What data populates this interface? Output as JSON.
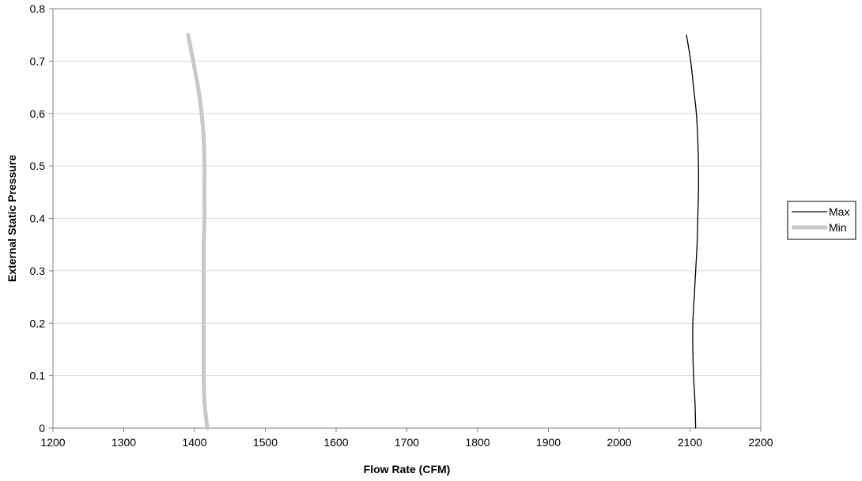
{
  "chart_data": {
    "type": "line",
    "title": "",
    "xlabel": "Flow Rate (CFM)",
    "ylabel": "External Static Pressure",
    "xlim": [
      1200,
      2200
    ],
    "ylim": [
      0,
      0.8
    ],
    "x_ticks": [
      "1200",
      "1300",
      "1400",
      "1500",
      "1600",
      "1700",
      "1800",
      "1900",
      "2000",
      "2100",
      "2200"
    ],
    "y_ticks": [
      "0",
      "0.1",
      "0.2",
      "0.3",
      "0.4",
      "0.5",
      "0.6",
      "0.7",
      "0.8"
    ],
    "grid": "horizontal",
    "legend_position": "right",
    "series": [
      {
        "name": "Max",
        "color": "#000000",
        "points": [
          {
            "x": 2108,
            "y": 0.0
          },
          {
            "x": 2107,
            "y": 0.05
          },
          {
            "x": 2105,
            "y": 0.1
          },
          {
            "x": 2104,
            "y": 0.15
          },
          {
            "x": 2104,
            "y": 0.2
          },
          {
            "x": 2106,
            "y": 0.25
          },
          {
            "x": 2108,
            "y": 0.3
          },
          {
            "x": 2110,
            "y": 0.35
          },
          {
            "x": 2111,
            "y": 0.4
          },
          {
            "x": 2112,
            "y": 0.45
          },
          {
            "x": 2112,
            "y": 0.5
          },
          {
            "x": 2111,
            "y": 0.55
          },
          {
            "x": 2109,
            "y": 0.6
          },
          {
            "x": 2105,
            "y": 0.65
          },
          {
            "x": 2101,
            "y": 0.7
          },
          {
            "x": 2095,
            "y": 0.75
          }
        ]
      },
      {
        "name": "Min",
        "color": "#c8c8c8",
        "points": [
          {
            "x": 1418,
            "y": 0.0
          },
          {
            "x": 1414,
            "y": 0.05
          },
          {
            "x": 1413,
            "y": 0.1
          },
          {
            "x": 1413,
            "y": 0.15
          },
          {
            "x": 1413,
            "y": 0.2
          },
          {
            "x": 1413,
            "y": 0.25
          },
          {
            "x": 1413,
            "y": 0.3
          },
          {
            "x": 1413,
            "y": 0.35
          },
          {
            "x": 1414,
            "y": 0.4
          },
          {
            "x": 1414,
            "y": 0.45
          },
          {
            "x": 1414,
            "y": 0.5
          },
          {
            "x": 1413,
            "y": 0.55
          },
          {
            "x": 1410,
            "y": 0.6
          },
          {
            "x": 1405,
            "y": 0.65
          },
          {
            "x": 1398,
            "y": 0.7
          },
          {
            "x": 1391,
            "y": 0.75
          }
        ]
      }
    ]
  }
}
